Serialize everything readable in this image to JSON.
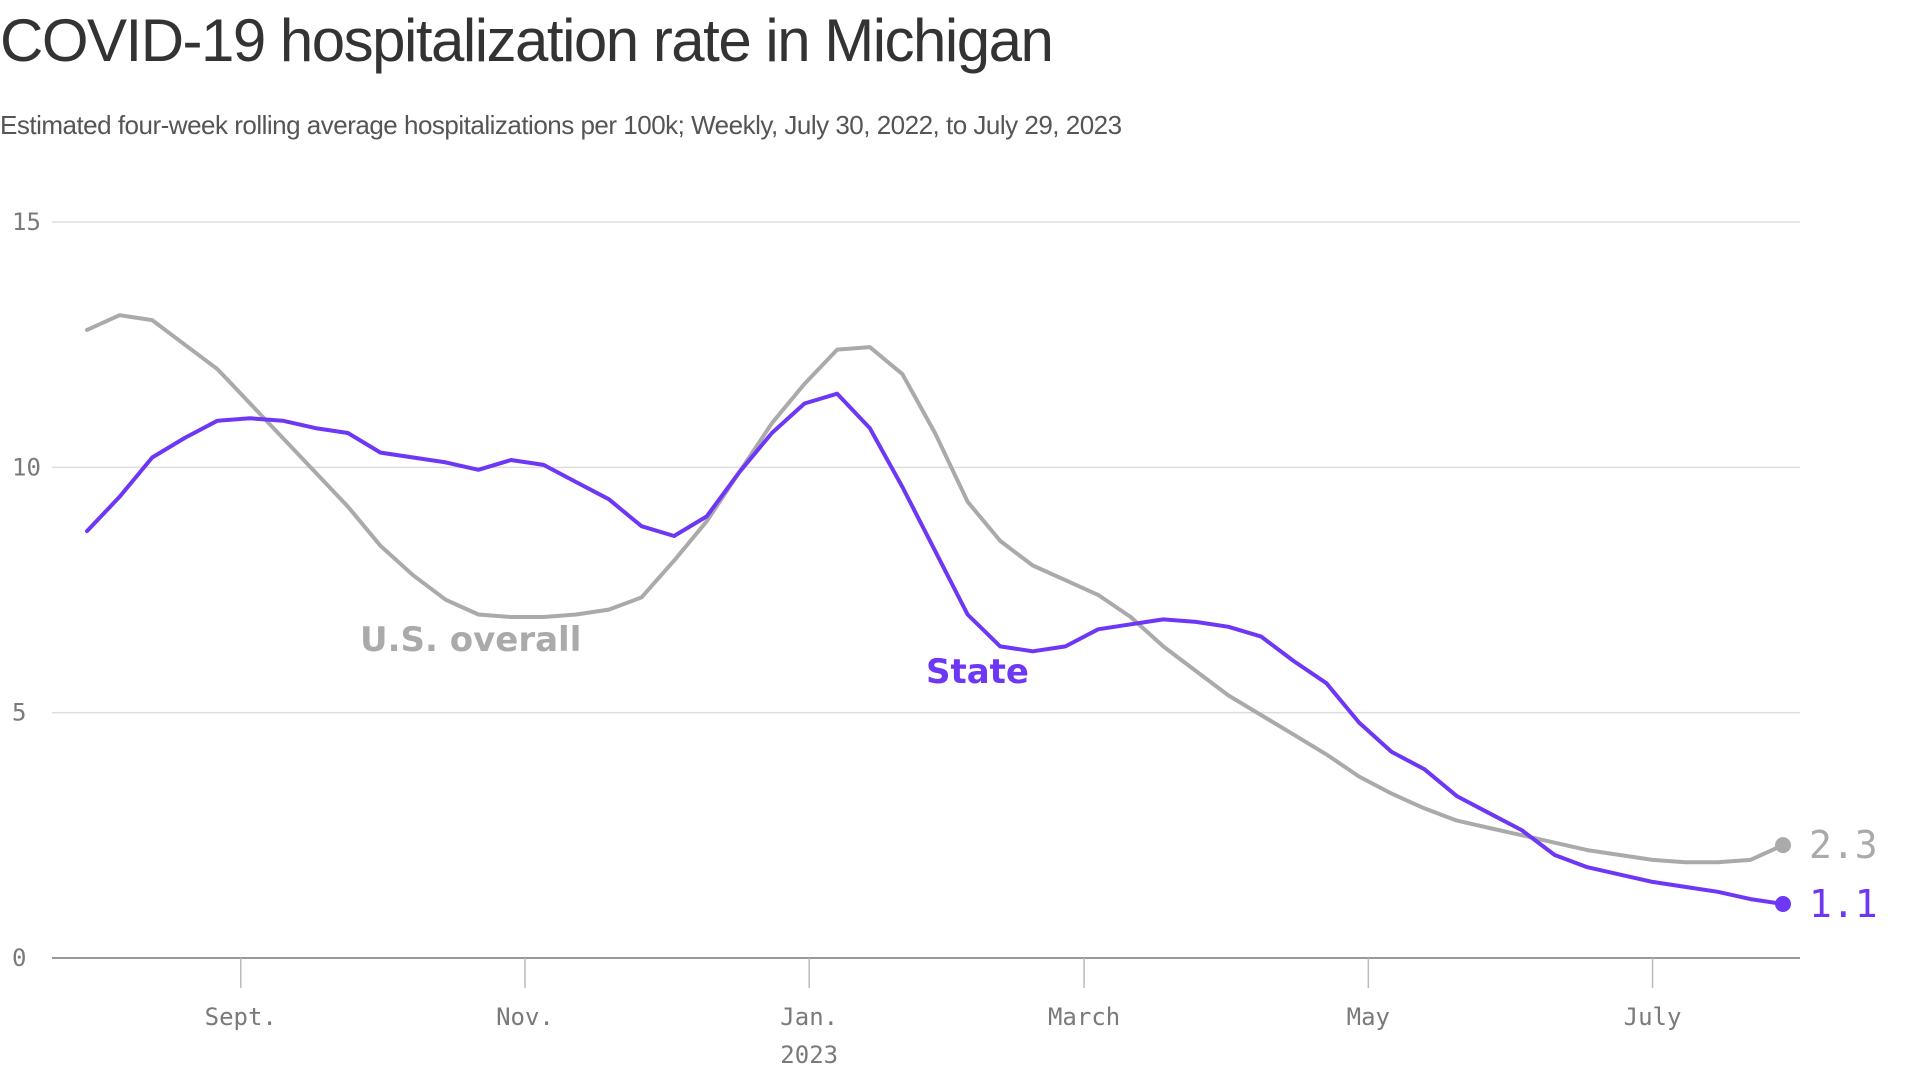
{
  "chart_data": {
    "type": "line",
    "title": "COVID-19 hospitalization rate in Michigan",
    "subtitle": "Estimated four-week rolling average hospitalizations per 100k; Weekly, July 30, 2022, to July 29, 2023",
    "xlabel": "",
    "ylabel": "",
    "ylim": [
      0,
      15
    ],
    "yticks": [
      0,
      5,
      10,
      15
    ],
    "xlim": [
      "2022-07-30",
      "2023-07-29"
    ],
    "xticks": [
      {
        "date": "2022-09-01",
        "label": "Sept."
      },
      {
        "date": "2022-11-01",
        "label": "Nov."
      },
      {
        "date": "2023-01-01",
        "label": "Jan.",
        "sublabel": "2023"
      },
      {
        "date": "2023-03-01",
        "label": "March"
      },
      {
        "date": "2023-05-01",
        "label": "May"
      },
      {
        "date": "2023-07-01",
        "label": "July"
      }
    ],
    "grid": true,
    "x": [
      "2022-07-30",
      "2022-08-06",
      "2022-08-13",
      "2022-08-20",
      "2022-08-27",
      "2022-09-03",
      "2022-09-10",
      "2022-09-17",
      "2022-09-24",
      "2022-10-01",
      "2022-10-08",
      "2022-10-15",
      "2022-10-22",
      "2022-10-29",
      "2022-11-05",
      "2022-11-12",
      "2022-11-19",
      "2022-11-26",
      "2022-12-03",
      "2022-12-10",
      "2022-12-17",
      "2022-12-24",
      "2022-12-31",
      "2023-01-07",
      "2023-01-14",
      "2023-01-21",
      "2023-01-28",
      "2023-02-04",
      "2023-02-11",
      "2023-02-18",
      "2023-02-25",
      "2023-03-04",
      "2023-03-11",
      "2023-03-18",
      "2023-03-25",
      "2023-04-01",
      "2023-04-08",
      "2023-04-15",
      "2023-04-22",
      "2023-04-29",
      "2023-05-06",
      "2023-05-13",
      "2023-05-20",
      "2023-05-27",
      "2023-06-03",
      "2023-06-10",
      "2023-06-17",
      "2023-06-24",
      "2023-07-01",
      "2023-07-08",
      "2023-07-15",
      "2023-07-22",
      "2023-07-29"
    ],
    "series": [
      {
        "name": "U.S. overall",
        "color": "#aaaaaa",
        "end_label": "2.3",
        "values": [
          12.8,
          13.1,
          13.0,
          12.5,
          12.0,
          11.3,
          10.6,
          9.9,
          9.2,
          8.4,
          7.8,
          7.3,
          7.0,
          6.95,
          6.95,
          7.0,
          7.1,
          7.35,
          8.1,
          8.9,
          9.9,
          10.9,
          11.7,
          12.4,
          12.45,
          11.9,
          10.7,
          9.3,
          8.5,
          8.0,
          7.7,
          7.4,
          6.95,
          6.35,
          5.85,
          5.35,
          4.95,
          4.55,
          4.15,
          3.7,
          3.35,
          3.05,
          2.8,
          2.65,
          2.5,
          2.35,
          2.2,
          2.1,
          2.0,
          1.95,
          1.95,
          2.0,
          2.3
        ]
      },
      {
        "name": "State",
        "color": "#6e37f5",
        "end_label": "1.1",
        "values": [
          8.7,
          9.4,
          10.2,
          10.6,
          10.95,
          11.0,
          10.95,
          10.8,
          10.7,
          10.3,
          10.2,
          10.1,
          9.95,
          10.15,
          10.05,
          9.7,
          9.35,
          8.8,
          8.6,
          9.0,
          9.9,
          10.7,
          11.3,
          11.5,
          10.8,
          9.6,
          8.3,
          7.0,
          6.35,
          6.25,
          6.35,
          6.7,
          6.8,
          6.9,
          6.85,
          6.75,
          6.55,
          6.05,
          5.6,
          4.8,
          4.2,
          3.85,
          3.3,
          2.95,
          2.6,
          2.1,
          1.85,
          1.7,
          1.55,
          1.45,
          1.35,
          1.2,
          1.1
        ]
      }
    ]
  }
}
